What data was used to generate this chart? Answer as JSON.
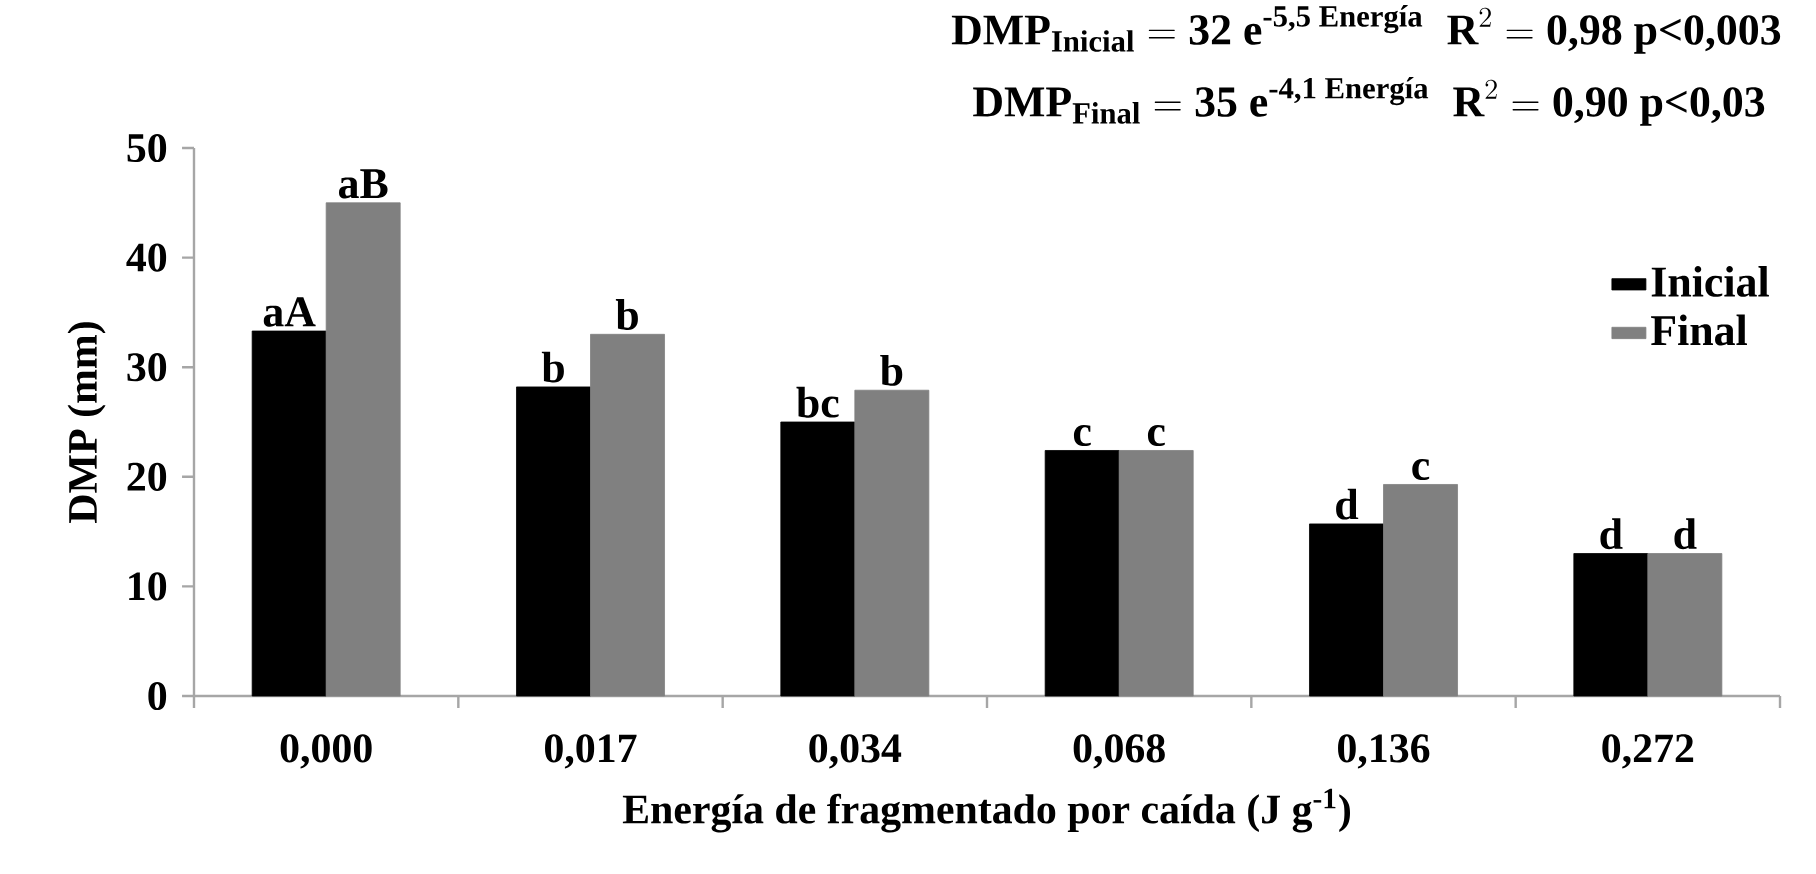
{
  "chart_data": {
    "type": "bar",
    "title": "\\text{DMP}_{\\text{Inicial}} = \\text{32 e}^{\\text{-5,5 Energía}}\\;\\; \\text{R}^{2} = \\text{0,98 p<0,003}",
    "subtitle": "\\text{DMP}_{\\text{Final}} = \\text{35 e}^{\\text{-4,1 Energía}}\\;\\; \\text{R}^{2} = \\text{0,90 p<0,03}",
    "xlabel": "Energía de fragmentado por caída (J g$^{-1}$)",
    "ylabel": "DMP (mm)",
    "categories": [
      "0,000",
      "0,017",
      "0,034",
      "0,068",
      "0,136",
      "0,272"
    ],
    "series": [
      {
        "name": "Inicial",
        "color": "#000000",
        "values": [
          33.3,
          28.2,
          25.0,
          22.4,
          15.7,
          13.0
        ]
      },
      {
        "name": "Final",
        "color": "#808080",
        "values": [
          45.0,
          33.0,
          27.9,
          22.4,
          19.3,
          13.0
        ]
      }
    ],
    "ylim": [
      0,
      50
    ],
    "yticks": [
      0,
      10,
      20,
      30,
      40,
      50
    ],
    "legend": "right",
    "annotations": [
      {
        "text": "aA",
        "x": "0,000",
        "y": 33.3
      },
      {
        "text": "aB",
        "x": "0,000",
        "y": 45.0
      },
      {
        "text": "b",
        "x": "0,017",
        "y": 28.2
      },
      {
        "text": "b",
        "x": "0,017",
        "y": 33.0
      },
      {
        "text": "bc",
        "x": "0,034",
        "y": 25.0
      },
      {
        "text": "b",
        "x": "0,034",
        "y": 27.9
      },
      {
        "text": "c",
        "x": "0,068",
        "y": 22.4
      },
      {
        "text": "c",
        "x": "0,068",
        "y": 22.4
      },
      {
        "text": "d",
        "x": "0,136",
        "y": 15.7
      },
      {
        "text": "c",
        "x": "0,136",
        "y": 19.3
      },
      {
        "text": "d",
        "x": "0,272",
        "y": 13.0
      },
      {
        "text": "d",
        "x": "0,272",
        "y": 13.0
      }
    ]
  }
}
